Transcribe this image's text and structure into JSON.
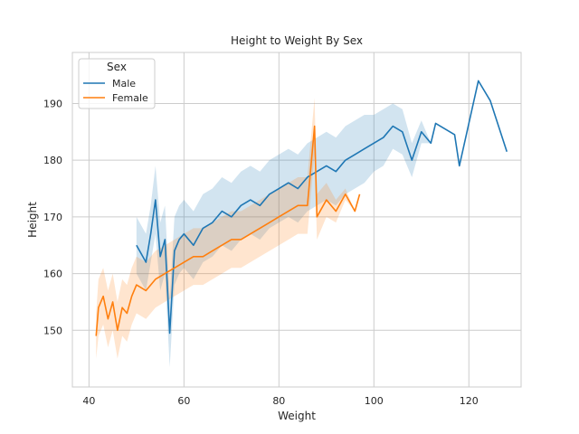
{
  "chart_data": {
    "type": "line",
    "title": "Height to Weight By Sex",
    "xlabel": "Weight",
    "ylabel": "Height",
    "xlim": [
      36.5,
      131
    ],
    "ylim": [
      140,
      199
    ],
    "xticks": [
      40,
      60,
      80,
      100,
      120
    ],
    "yticks": [
      150,
      160,
      170,
      180,
      190
    ],
    "grid": true,
    "legend": {
      "title": "Sex",
      "placement": "top-left"
    },
    "series": [
      {
        "name": "Male",
        "color": "#1f77b4",
        "x": [
          50,
          52,
          53,
          54,
          55,
          56,
          57,
          58,
          59,
          60,
          62,
          64,
          66,
          68,
          70,
          72,
          74,
          76,
          78,
          80,
          82,
          84,
          86,
          88,
          90,
          92,
          94,
          96,
          98,
          100,
          102,
          104,
          106,
          108,
          110,
          112,
          113,
          117,
          118,
          122,
          124.5,
          128
        ],
        "y": [
          165,
          162,
          167,
          173,
          163,
          166,
          149.5,
          164,
          166,
          167,
          165,
          168,
          169,
          171,
          170,
          172,
          173,
          172,
          174,
          175,
          176,
          175,
          177,
          178,
          179,
          178,
          180,
          181,
          182,
          183,
          184,
          186,
          185,
          180,
          185,
          183,
          186.5,
          184.5,
          179,
          194,
          190.5,
          181.5
        ],
        "band": [
          5,
          5,
          5,
          6,
          6,
          6,
          6,
          6,
          6,
          6,
          6,
          6,
          6,
          6,
          6,
          6,
          6,
          6,
          6,
          6,
          6,
          6,
          6,
          6,
          6,
          6,
          6,
          6,
          6,
          5,
          5,
          4,
          4,
          3,
          2,
          0,
          0,
          0,
          0,
          0,
          0,
          0
        ]
      },
      {
        "name": "Female",
        "color": "#ff7f0e",
        "x": [
          41.5,
          42,
          43,
          44,
          45,
          46,
          47,
          48,
          49,
          50,
          52,
          54,
          56,
          58,
          60,
          62,
          64,
          66,
          68,
          70,
          72,
          74,
          76,
          78,
          80,
          82,
          84,
          86,
          87.5,
          88,
          90,
          92,
          94,
          96,
          97
        ],
        "y": [
          149,
          154,
          156,
          152,
          155,
          150,
          154,
          153,
          156,
          158,
          157,
          159,
          160,
          161,
          162,
          163,
          163,
          164,
          165,
          166,
          166,
          167,
          168,
          169,
          170,
          171,
          172,
          172,
          186,
          170,
          173,
          171,
          174,
          171,
          174
        ],
        "band": [
          4,
          5,
          5,
          5,
          5,
          5,
          5,
          5,
          5,
          5,
          5,
          5,
          5,
          5,
          5,
          5,
          5,
          5,
          5,
          5,
          5,
          5,
          5,
          5,
          5,
          5,
          5,
          5,
          5,
          4,
          3,
          2,
          1,
          0,
          0
        ]
      }
    ]
  }
}
